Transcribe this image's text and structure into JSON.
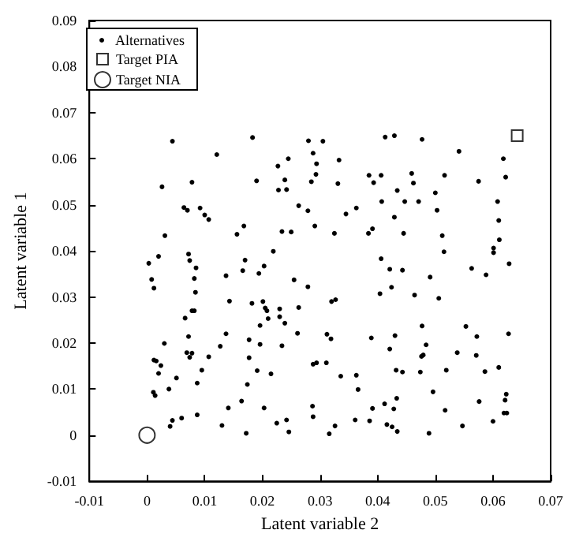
{
  "chart_data": {
    "type": "scatter",
    "xlabel": "Latent variable 2",
    "ylabel": "Latent variable 1",
    "xlim": [
      -0.01,
      0.07
    ],
    "xticks": [
      -0.01,
      0,
      0.01,
      0.02,
      0.03,
      0.04,
      0.05,
      0.06,
      0.07
    ],
    "ylim": [
      -0.01,
      0.09
    ],
    "yticks": [
      -0.01,
      0,
      0.01,
      0.02,
      0.03,
      0.04,
      0.05,
      0.06,
      0.07,
      0.08,
      0.09
    ],
    "grid": false,
    "legend": "top left",
    "series": [
      {
        "name": "Alternatives",
        "color": "#000000",
        "marker": "circle",
        "x": [
          0.0044,
          0.0183,
          0.028,
          0.0305,
          0.0121,
          0.0288,
          0.0245,
          0.0227,
          0.0294,
          0.0293,
          0.0026,
          0.0078,
          0.019,
          0.0239,
          0.0285,
          0.0228,
          0.0242,
          0.0064,
          0.007,
          0.0092,
          0.01,
          0.0107,
          0.0263,
          0.0279,
          0.0031,
          0.0156,
          0.0168,
          0.0234,
          0.025,
          0.0291,
          0.0413,
          0.0429,
          0.0477,
          0.0541,
          0.0618,
          0.0333,
          0.0385,
          0.0406,
          0.0459,
          0.0516,
          0.0622,
          0.0393,
          0.0462,
          0.0331,
          0.0575,
          0.0434,
          0.05,
          0.0407,
          0.0447,
          0.0471,
          0.0608,
          0.0363,
          0.0345,
          0.0503,
          0.0429,
          0.061,
          0.0391,
          0.0384,
          0.0325,
          0.0445,
          0.0512,
          0.0611,
          0.002,
          0.0003,
          0.0072,
          0.0074,
          0.0085,
          0.0008,
          0.0012,
          0.0082,
          0.0084,
          0.0137,
          0.0166,
          0.017,
          0.0194,
          0.0203,
          0.0219,
          0.0255,
          0.0279,
          0.0143,
          0.0182,
          0.0201,
          0.0205,
          0.0208,
          0.023,
          0.0263,
          0.0078,
          0.0082,
          0.0066,
          0.021,
          0.023,
          0.0196,
          0.0239,
          0.0261,
          0.0137,
          0.0072,
          0.0177,
          0.003,
          0.0127,
          0.0196,
          0.0234,
          0.0069,
          0.0078,
          0.0074,
          0.0107,
          0.0177,
          0.0012,
          0.0016,
          0.0024,
          0.0288,
          0.0294,
          0.0095,
          0.0191,
          0.0215,
          0.002,
          0.0051,
          0.0087,
          0.0174,
          0.0038,
          0.0011,
          0.0014,
          0.0164,
          0.0287,
          0.0141,
          0.0203,
          0.0087,
          0.0288,
          0.006,
          0.0044,
          0.0242,
          0.004,
          0.0225,
          0.013,
          0.0246,
          0.0172,
          0.0515,
          0.0601,
          0.0601,
          0.0628,
          0.0406,
          0.0421,
          0.0443,
          0.0563,
          0.0588,
          0.0491,
          0.0424,
          0.0404,
          0.0464,
          0.0506,
          0.032,
          0.0327,
          0.0477,
          0.0553,
          0.0312,
          0.0319,
          0.0389,
          0.043,
          0.0572,
          0.0627,
          0.0484,
          0.0421,
          0.0538,
          0.0476,
          0.0479,
          0.0571,
          0.0311,
          0.0432,
          0.0443,
          0.0474,
          0.0519,
          0.0586,
          0.061,
          0.0336,
          0.0363,
          0.0366,
          0.0496,
          0.0433,
          0.0623,
          0.0576,
          0.0621,
          0.0412,
          0.0391,
          0.0428,
          0.0517,
          0.0619,
          0.0624,
          0.0361,
          0.0386,
          0.0416,
          0.0425,
          0.0434,
          0.0489,
          0.0547,
          0.06,
          0.0326,
          0.0316
        ],
        "values": [
          0.0638,
          0.0646,
          0.0639,
          0.0638,
          0.0609,
          0.0612,
          0.06,
          0.0584,
          0.0589,
          0.0566,
          0.0539,
          0.0549,
          0.0552,
          0.0554,
          0.055,
          0.0532,
          0.0533,
          0.0494,
          0.0488,
          0.0493,
          0.0478,
          0.0468,
          0.0498,
          0.0487,
          0.0433,
          0.0436,
          0.0454,
          0.0442,
          0.0441,
          0.0454,
          0.0647,
          0.065,
          0.0642,
          0.0616,
          0.06,
          0.0597,
          0.0564,
          0.0564,
          0.0568,
          0.0564,
          0.056,
          0.0548,
          0.0547,
          0.0546,
          0.0551,
          0.0531,
          0.0526,
          0.0507,
          0.0507,
          0.0507,
          0.0507,
          0.0493,
          0.048,
          0.0488,
          0.0473,
          0.0466,
          0.0448,
          0.0438,
          0.0438,
          0.0438,
          0.0433,
          0.0424,
          0.0388,
          0.0373,
          0.0393,
          0.0379,
          0.0363,
          0.0338,
          0.0319,
          0.034,
          0.031,
          0.0346,
          0.0357,
          0.038,
          0.0351,
          0.0367,
          0.0399,
          0.0337,
          0.0322,
          0.0291,
          0.0286,
          0.029,
          0.0276,
          0.027,
          0.0274,
          0.0277,
          0.027,
          0.027,
          0.0254,
          0.0253,
          0.0257,
          0.0238,
          0.0243,
          0.0221,
          0.022,
          0.0214,
          0.0207,
          0.0199,
          0.0193,
          0.0197,
          0.0194,
          0.0179,
          0.0178,
          0.0169,
          0.017,
          0.0168,
          0.0163,
          0.0161,
          0.0151,
          0.0154,
          0.0157,
          0.0141,
          0.014,
          0.0133,
          0.0134,
          0.0124,
          0.0113,
          0.011,
          0.01,
          0.0093,
          0.0086,
          0.0074,
          0.0063,
          0.0059,
          0.0059,
          0.0044,
          0.004,
          0.0037,
          0.0032,
          0.0033,
          0.0019,
          0.0026,
          0.0021,
          0.0007,
          0.0004,
          0.0398,
          0.0406,
          0.0396,
          0.0372,
          0.0383,
          0.036,
          0.0358,
          0.0362,
          0.0348,
          0.0343,
          0.0321,
          0.0307,
          0.0304,
          0.0297,
          0.029,
          0.0294,
          0.0237,
          0.0236,
          0.0219,
          0.0209,
          0.0211,
          0.0216,
          0.0214,
          0.022,
          0.0196,
          0.0187,
          0.0179,
          0.0171,
          0.0174,
          0.0173,
          0.0157,
          0.0141,
          0.0137,
          0.0137,
          0.0141,
          0.0138,
          0.0147,
          0.0128,
          0.013,
          0.0099,
          0.0094,
          0.008,
          0.0089,
          0.0073,
          0.0076,
          0.0068,
          0.0058,
          0.0057,
          0.0054,
          0.0048,
          0.0048,
          0.0033,
          0.0031,
          0.0023,
          0.0018,
          0.0008,
          0.0004,
          0.002,
          0.003,
          0.002,
          0.0003
        ]
      },
      {
        "name": "Target PIA",
        "color": "#000000",
        "marker": "square",
        "x": [
          0.0642
        ],
        "values": [
          0.065
        ]
      },
      {
        "name": "Target NIA",
        "color": "#000000",
        "marker": "circle",
        "x": [
          0
        ],
        "values": [
          0
        ]
      }
    ]
  }
}
